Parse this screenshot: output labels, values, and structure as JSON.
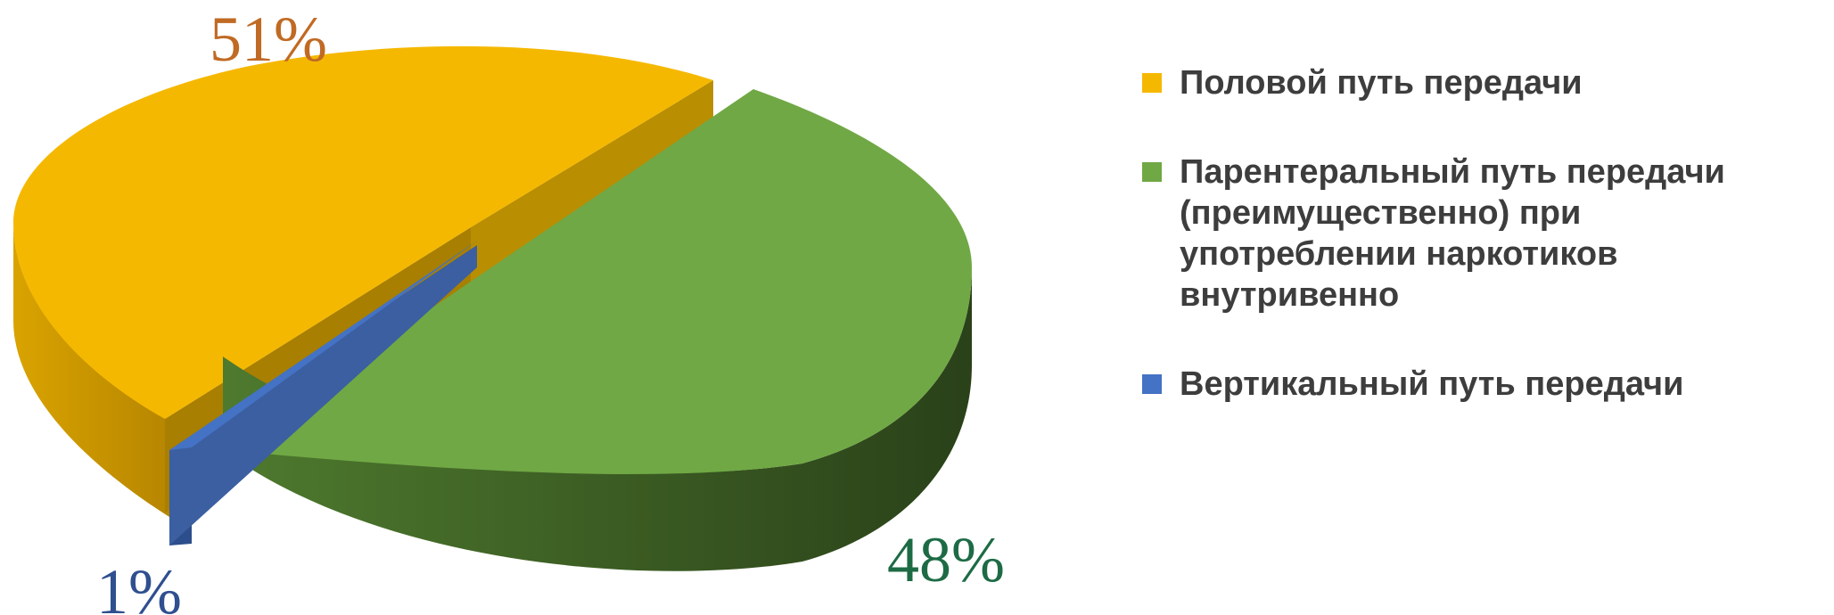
{
  "chart_data": {
    "type": "pie",
    "style": "3d-exploded",
    "title": "",
    "legend_position": "right",
    "slices": [
      {
        "name": "Половой путь передачи",
        "value": 51,
        "label": "51%",
        "color": "#F5B800",
        "side_color": "#C79300",
        "label_color": "#C06A24"
      },
      {
        "name": "Парентеральный путь передачи (преимущественно) при употреблении наркотиков внутривенно",
        "value": 48,
        "label": "48%",
        "color": "#70A845",
        "side_color": "#3C5E24",
        "label_color": "#1D6B45"
      },
      {
        "name": "Вертикальный путь передачи",
        "value": 1,
        "label": "1%",
        "color": "#4472C4",
        "side_color": "#2D4E8C",
        "label_color": "#2F4F8F"
      }
    ]
  }
}
